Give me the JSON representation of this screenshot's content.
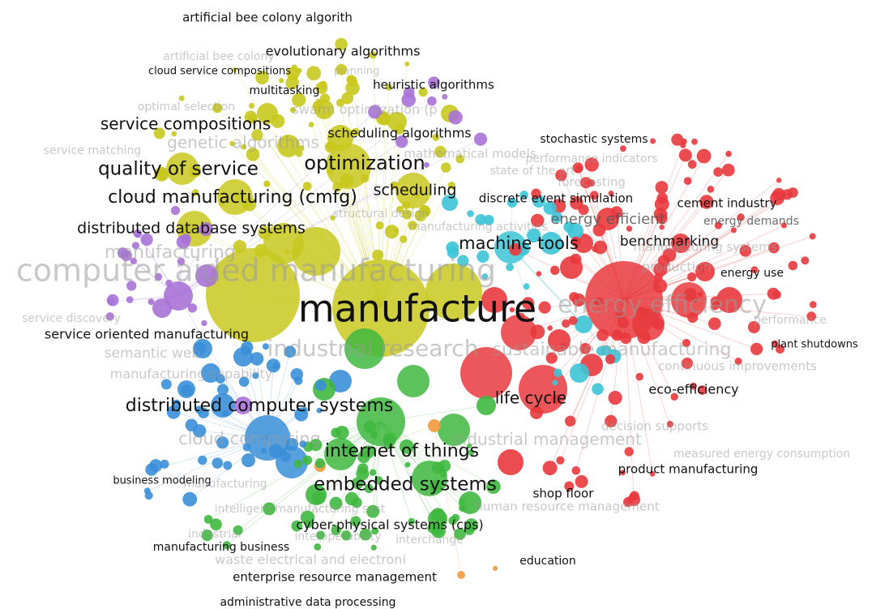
{
  "clusters": {
    "yellow": "#c8c81e",
    "red": "#e8393d",
    "green": "#3fb83f",
    "blue": "#3a8fd8",
    "purple": "#a772d6",
    "cyan": "#3cc4d6",
    "orange": "#f39a3c",
    "brown": "#b88a80"
  },
  "labels": [
    {
      "text": "artificial bee colony algorith",
      "cluster": "yellow",
      "strength": "strong"
    },
    {
      "text": "evolutionary algorithms",
      "cluster": "yellow",
      "strength": "strong"
    },
    {
      "text": "artificial bee colony",
      "cluster": "yellow",
      "strength": "faint"
    },
    {
      "text": "cloud service compositions",
      "cluster": "yellow",
      "strength": "strong"
    },
    {
      "text": "planning",
      "cluster": "yellow",
      "strength": "faint"
    },
    {
      "text": "multitasking",
      "cluster": "yellow",
      "strength": "strong"
    },
    {
      "text": "heuristic algorithms",
      "cluster": "yellow",
      "strength": "strong"
    },
    {
      "text": "optimal selection",
      "cluster": "yellow",
      "strength": "faint"
    },
    {
      "text": "swarm optimization (p",
      "cluster": "yellow",
      "strength": "faint"
    },
    {
      "text": "service compositions",
      "cluster": "yellow",
      "strength": "strong"
    },
    {
      "text": "scheduling algorithms",
      "cluster": "yellow",
      "strength": "strong"
    },
    {
      "text": "service matching",
      "cluster": "purple",
      "strength": "faint"
    },
    {
      "text": "genetic algorithms",
      "cluster": "yellow",
      "strength": "faint"
    },
    {
      "text": "stochastic systems",
      "cluster": "red",
      "strength": "strong"
    },
    {
      "text": "mathematical models",
      "cluster": "red",
      "strength": "faint"
    },
    {
      "text": "performance indicators",
      "cluster": "red",
      "strength": "faint"
    },
    {
      "text": "optimization",
      "cluster": "yellow",
      "strength": "strong"
    },
    {
      "text": "quality of service",
      "cluster": "yellow",
      "strength": "strong"
    },
    {
      "text": "state of the art",
      "cluster": "red",
      "strength": "faint"
    },
    {
      "text": "forecasting",
      "cluster": "red",
      "strength": "faint"
    },
    {
      "text": "scheduling",
      "cluster": "yellow",
      "strength": "strong"
    },
    {
      "text": "discrete event simulation",
      "cluster": "cyan",
      "strength": "strong"
    },
    {
      "text": "cloud manufacturing (cmfg)",
      "cluster": "yellow",
      "strength": "strong"
    },
    {
      "text": "cement industry",
      "cluster": "red",
      "strength": "strong"
    },
    {
      "text": "structural design",
      "cluster": "yellow",
      "strength": "faint"
    },
    {
      "text": "energy efficient",
      "cluster": "red",
      "strength": "medium"
    },
    {
      "text": "energy demands",
      "cluster": "red",
      "strength": "medium"
    },
    {
      "text": "distributed database systems",
      "cluster": "yellow",
      "strength": "strong"
    },
    {
      "text": "manufacturing activities",
      "cluster": "yellow",
      "strength": "faint"
    },
    {
      "text": "machine tools",
      "cluster": "cyan",
      "strength": "strong"
    },
    {
      "text": "benchmarking",
      "cluster": "red",
      "strength": "strong"
    },
    {
      "text": "manufacturing",
      "cluster": "yellow",
      "strength": "faint"
    },
    {
      "text": "manufacturing systems",
      "cluster": "yellow",
      "strength": "faint"
    },
    {
      "text": "production",
      "cluster": "red",
      "strength": "faint"
    },
    {
      "text": "energy use",
      "cluster": "red",
      "strength": "strong"
    },
    {
      "text": "computer aided manufacturing",
      "cluster": "yellow",
      "strength": "faint"
    },
    {
      "text": "manufacture",
      "cluster": "yellow",
      "strength": "strong"
    },
    {
      "text": "energy efficiency",
      "cluster": "red",
      "strength": "faint"
    },
    {
      "text": "service discovery",
      "cluster": "purple",
      "strength": "faint"
    },
    {
      "text": "performance",
      "cluster": "red",
      "strength": "faint"
    },
    {
      "text": "service oriented manufacturing",
      "cluster": "blue",
      "strength": "strong"
    },
    {
      "text": "plant shutdowns",
      "cluster": "red",
      "strength": "strong"
    },
    {
      "text": "semantic web",
      "cluster": "purple",
      "strength": "faint"
    },
    {
      "text": "industrial research",
      "cluster": "green",
      "strength": "faint"
    },
    {
      "text": "sustainable manufacturing",
      "cluster": "red",
      "strength": "faint"
    },
    {
      "text": "continuous improvements",
      "cluster": "red",
      "strength": "faint"
    },
    {
      "text": "manufacturing capability",
      "cluster": "purple",
      "strength": "faint"
    },
    {
      "text": "life cycle",
      "cluster": "red",
      "strength": "strong"
    },
    {
      "text": "eco-efficiency",
      "cluster": "red",
      "strength": "strong"
    },
    {
      "text": "distributed computer systems",
      "cluster": "blue",
      "strength": "strong"
    },
    {
      "text": "decision supports",
      "cluster": "red",
      "strength": "faint"
    },
    {
      "text": "cloud computing",
      "cluster": "blue",
      "strength": "faint"
    },
    {
      "text": "industrial management",
      "cluster": "red",
      "strength": "faint"
    },
    {
      "text": "measured energy consumption",
      "cluster": "brown",
      "strength": "faint"
    },
    {
      "text": "internet of things",
      "cluster": "green",
      "strength": "strong"
    },
    {
      "text": "product manufacturing",
      "cluster": "red",
      "strength": "strong"
    },
    {
      "text": "business modeling",
      "cluster": "blue",
      "strength": "strong"
    },
    {
      "text": "manufacturing",
      "cluster": "blue",
      "strength": "faint"
    },
    {
      "text": "embedded systems",
      "cluster": "green",
      "strength": "strong"
    },
    {
      "text": "shop floor",
      "cluster": "red",
      "strength": "strong"
    },
    {
      "text": "intelligent manufacturing syst",
      "cluster": "green",
      "strength": "faint"
    },
    {
      "text": "human resource management",
      "cluster": "red",
      "strength": "faint"
    },
    {
      "text": "cyber-physical systems (cps)",
      "cluster": "green",
      "strength": "strong"
    },
    {
      "text": "industrial",
      "cluster": "green",
      "strength": "faint"
    },
    {
      "text": "interoperability",
      "cluster": "green",
      "strength": "faint"
    },
    {
      "text": "interchange",
      "cluster": "green",
      "strength": "faint"
    },
    {
      "text": "manufacturing business",
      "cluster": "green",
      "strength": "strong"
    },
    {
      "text": "waste electrical and electroni",
      "cluster": "green",
      "strength": "faint"
    },
    {
      "text": "education",
      "cluster": "orange",
      "strength": "strong"
    },
    {
      "text": "enterprise resource management",
      "cluster": "green",
      "strength": "strong"
    },
    {
      "text": "administrative data processing",
      "cluster": "green",
      "strength": "strong"
    }
  ]
}
